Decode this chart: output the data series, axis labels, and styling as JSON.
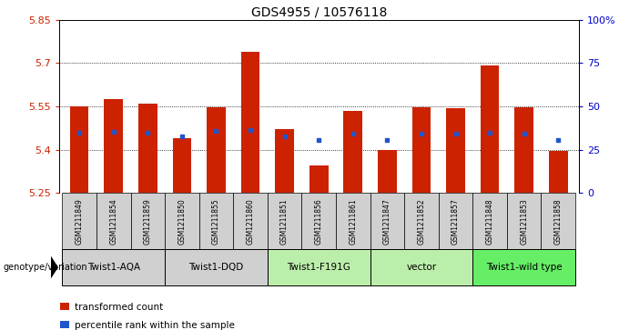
{
  "title": "GDS4955 / 10576118",
  "samples": [
    "GSM1211849",
    "GSM1211854",
    "GSM1211859",
    "GSM1211850",
    "GSM1211855",
    "GSM1211860",
    "GSM1211851",
    "GSM1211856",
    "GSM1211861",
    "GSM1211847",
    "GSM1211852",
    "GSM1211857",
    "GSM1211848",
    "GSM1211853",
    "GSM1211858"
  ],
  "bar_values": [
    5.55,
    5.575,
    5.56,
    5.44,
    5.548,
    5.74,
    5.47,
    5.345,
    5.535,
    5.4,
    5.548,
    5.543,
    5.692,
    5.548,
    5.395
  ],
  "dot_values": [
    5.46,
    5.462,
    5.46,
    5.445,
    5.465,
    5.468,
    5.445,
    5.435,
    5.455,
    5.435,
    5.455,
    5.455,
    5.458,
    5.457,
    5.435
  ],
  "ylim_left": [
    5.25,
    5.85
  ],
  "yticks_left": [
    5.25,
    5.4,
    5.55,
    5.7,
    5.85
  ],
  "ytick_labels_left": [
    "5.25",
    "5.4",
    "5.55",
    "5.7",
    "5.85"
  ],
  "yticks_right": [
    0,
    25,
    50,
    75,
    100
  ],
  "ytick_labels_right": [
    "0",
    "25",
    "50",
    "75",
    "100%"
  ],
  "bar_color": "#cc2200",
  "dot_color": "#2255cc",
  "bar_width": 0.55,
  "groups": [
    {
      "label": "Twist1-AQA",
      "indices": [
        0,
        1,
        2
      ],
      "color": "#d0d0d0"
    },
    {
      "label": "Twist1-DQD",
      "indices": [
        3,
        4,
        5
      ],
      "color": "#d0d0d0"
    },
    {
      "label": "Twist1-F191G",
      "indices": [
        6,
        7,
        8
      ],
      "color": "#bbeeaa"
    },
    {
      "label": "vector",
      "indices": [
        9,
        10,
        11
      ],
      "color": "#bbeeaa"
    },
    {
      "label": "Twist1-wild type",
      "indices": [
        12,
        13,
        14
      ],
      "color": "#66ee66"
    }
  ],
  "tick_color_left": "#cc2200",
  "tick_color_right": "#0000cc",
  "legend_items": [
    {
      "label": "transformed count",
      "color": "#cc2200"
    },
    {
      "label": "percentile rank within the sample",
      "color": "#2255cc"
    }
  ],
  "genotype_label": "genotype/variation"
}
